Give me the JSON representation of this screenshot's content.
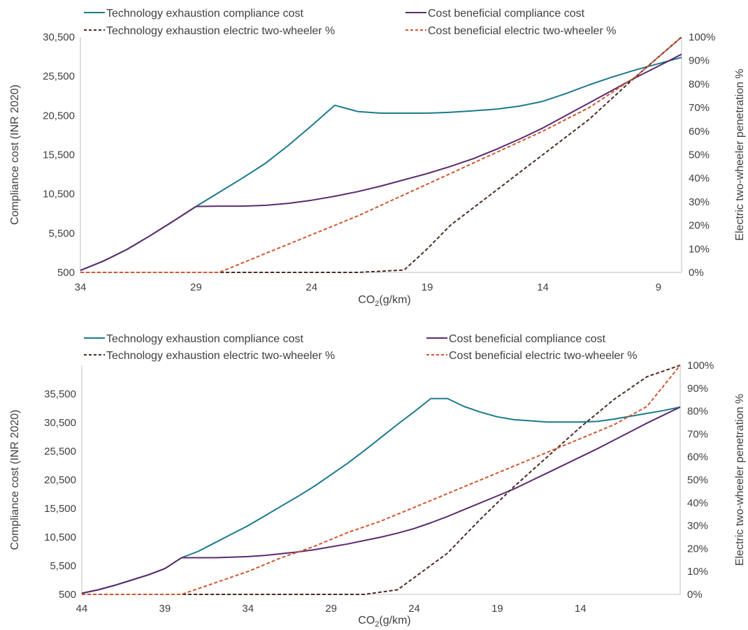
{
  "chart_data": [
    {
      "type": "line",
      "xlabel": "CO",
      "xlabel_sub": "2",
      "xlabel_unit": "(g/km)",
      "ylabel": "Compliance cost (INR 2020)",
      "y2label": "Electric two-wheeler penetration %",
      "xlim": [
        34,
        8
      ],
      "x_reversed": true,
      "ylim": [
        500,
        30500
      ],
      "y2lim": [
        0,
        100
      ],
      "x_ticks": [
        "34",
        "29",
        "24",
        "19",
        "14",
        "9"
      ],
      "y_ticks": [
        "30,500",
        "25,500",
        "20,500",
        "15,500",
        "10,500",
        "5,500",
        "500"
      ],
      "y2_ticks": [
        "100%",
        "90%",
        "80%",
        "70%",
        "60%",
        "50%",
        "40%",
        "30%",
        "20%",
        "10%",
        "0%"
      ],
      "legend_position": "top",
      "series": [
        {
          "name": "Technology exhaustion compliance cost",
          "axis": "left",
          "color": "#1a7a8c",
          "dash": "solid",
          "x": [
            34,
            33,
            32,
            31,
            30,
            29,
            28,
            27,
            26,
            25,
            24,
            23,
            22,
            21,
            20,
            19,
            18,
            17,
            16,
            15,
            14,
            13,
            12,
            11,
            10,
            9,
            8
          ],
          "y": [
            750,
            1950,
            3400,
            5150,
            7000,
            8900,
            10700,
            12500,
            14400,
            16700,
            19200,
            21800,
            21000,
            20800,
            20800,
            20800,
            20900,
            21100,
            21300,
            21700,
            22300,
            23300,
            24400,
            25400,
            26300,
            27100,
            27900
          ]
        },
        {
          "name": "Cost beneficial compliance cost",
          "axis": "left",
          "color": "#5b2a6e",
          "dash": "solid",
          "x": [
            34,
            33,
            32,
            31,
            30,
            29,
            28,
            27,
            26,
            25,
            24,
            23,
            22,
            21,
            20,
            19,
            18,
            17,
            16,
            15,
            14,
            13,
            12,
            11,
            10,
            9,
            8
          ],
          "y": [
            750,
            1950,
            3400,
            5150,
            7000,
            8900,
            8950,
            8950,
            9050,
            9300,
            9700,
            10200,
            10800,
            11500,
            12300,
            13100,
            14000,
            15000,
            16200,
            17500,
            18900,
            20500,
            22100,
            23700,
            25300,
            26800,
            28300
          ]
        },
        {
          "name": "Technology exhaustion electric two-wheeler %",
          "axis": "right",
          "color": "#4a2a22",
          "dash": "dashed",
          "x": [
            34,
            28,
            22,
            20,
            19,
            18,
            16,
            14,
            12,
            10,
            8
          ],
          "y": [
            0,
            0,
            0,
            1,
            10,
            20,
            35,
            50,
            65,
            83,
            100
          ]
        },
        {
          "name": "Cost beneficial electric two-wheeler %",
          "axis": "right",
          "color": "#d2552e",
          "dash": "dashed",
          "x": [
            34,
            30,
            28,
            26,
            24,
            22,
            20,
            18,
            16,
            14,
            12,
            10,
            8
          ],
          "y": [
            0,
            0,
            0,
            8,
            16,
            24,
            33,
            42,
            51,
            60,
            70,
            83,
            100
          ]
        }
      ]
    },
    {
      "type": "line",
      "xlabel": "CO",
      "xlabel_sub": "2",
      "xlabel_unit": "(g/km)",
      "ylabel": "Compliance cost (INR 2020)",
      "y2label": "Electric two-wheeler penetration %",
      "xlim": [
        44,
        8
      ],
      "x_reversed": true,
      "ylim": [
        500,
        40500
      ],
      "y2lim": [
        0,
        100
      ],
      "x_ticks": [
        "44",
        "39",
        "34",
        "29",
        "24",
        "19",
        "14"
      ],
      "y_ticks": [
        "35,500",
        "30,500",
        "25,500",
        "20,500",
        "15,500",
        "10,500",
        "5,500",
        "500"
      ],
      "y2_ticks": [
        "100%",
        "90%",
        "80%",
        "70%",
        "60%",
        "50%",
        "40%",
        "30%",
        "20%",
        "10%",
        "0%"
      ],
      "legend_position": "top",
      "series": [
        {
          "name": "Technology exhaustion compliance cost",
          "axis": "left",
          "color": "#1a7a8c",
          "dash": "solid",
          "x": [
            44,
            43,
            42,
            41,
            40,
            39,
            38,
            37,
            36,
            35,
            34,
            33,
            32,
            31,
            30,
            29,
            28,
            27,
            26,
            25,
            24,
            23,
            22,
            21,
            20,
            19,
            18,
            17,
            16,
            15,
            14,
            13,
            12,
            11,
            10,
            9,
            8
          ],
          "y": [
            700,
            1300,
            2100,
            3000,
            3900,
            5000,
            6900,
            8000,
            9500,
            11000,
            12500,
            14200,
            15900,
            17600,
            19400,
            21400,
            23400,
            25600,
            27900,
            30200,
            32400,
            34700,
            34700,
            33300,
            32300,
            31500,
            31000,
            30800,
            30600,
            30600,
            30600,
            30700,
            31100,
            31600,
            32100,
            32600,
            33200
          ]
        },
        {
          "name": "Cost beneficial compliance cost",
          "axis": "left",
          "color": "#5b2a6e",
          "dash": "solid",
          "x": [
            44,
            43,
            42,
            41,
            40,
            39,
            38,
            37,
            36,
            35,
            34,
            33,
            32,
            31,
            30,
            29,
            28,
            27,
            26,
            25,
            24,
            23,
            22,
            21,
            20,
            19,
            18,
            17,
            16,
            15,
            14,
            13,
            12,
            11,
            10,
            9,
            8
          ],
          "y": [
            700,
            1300,
            2100,
            3000,
            3900,
            5000,
            6900,
            6900,
            6900,
            7000,
            7100,
            7300,
            7600,
            7900,
            8300,
            8800,
            9300,
            9900,
            10500,
            11200,
            12000,
            13000,
            14100,
            15300,
            16500,
            17700,
            18900,
            20300,
            21700,
            23100,
            24500,
            25900,
            27400,
            28900,
            30400,
            31800,
            33200
          ]
        },
        {
          "name": "Technology exhaustion electric two-wheeler %",
          "axis": "right",
          "color": "#4a2a22",
          "dash": "dashed",
          "x": [
            44,
            38,
            32,
            27,
            25,
            22,
            20,
            18,
            16,
            14,
            12,
            10,
            8
          ],
          "y": [
            0,
            0,
            0,
            0,
            2,
            18,
            33,
            47,
            60,
            73,
            85,
            95,
            100
          ]
        },
        {
          "name": "Cost beneficial electric two-wheeler %",
          "axis": "right",
          "color": "#d2552e",
          "dash": "dashed",
          "x": [
            44,
            40,
            38,
            36,
            34,
            32,
            30,
            28,
            26,
            24,
            22,
            20,
            18,
            16,
            14,
            12,
            10,
            8
          ],
          "y": [
            0,
            0,
            0,
            5,
            10,
            16,
            21,
            27,
            32,
            38,
            44,
            50,
            56,
            62,
            68,
            74,
            82,
            100
          ]
        }
      ]
    }
  ]
}
